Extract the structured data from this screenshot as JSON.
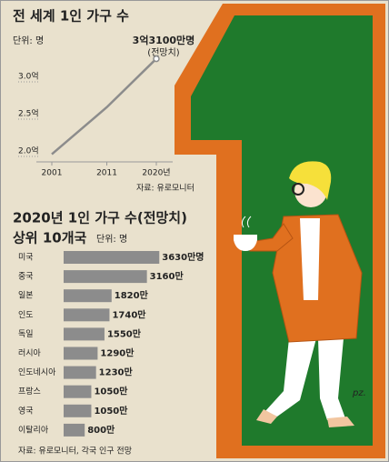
{
  "chart_data": [
    {
      "type": "line",
      "title": "전 세계 1인 가구 수",
      "unit": "단위: 명",
      "x": [
        2001,
        2011,
        2020
      ],
      "values": [
        2.03,
        2.66,
        3.31
      ],
      "value_labels": [
        null,
        null,
        "3억3100만명"
      ],
      "annotation": "(전망치)",
      "color": "#8c8c8c",
      "xlim": [
        2001,
        2020
      ],
      "xticks": [
        2001,
        2011,
        {
          "value": 2020,
          "label": "2020년"
        }
      ],
      "ylim": [
        1.9,
        3.35
      ],
      "yticks": [
        {
          "value": 2,
          "label": "2.0억"
        },
        {
          "value": 2.5,
          "label": "2.5억"
        },
        {
          "value": 3,
          "label": "3.0억"
        }
      ],
      "grid": false,
      "source": "자료: 유로모니터"
    },
    {
      "type": "hbar",
      "title": "2020년 1인 가구 수(전망치)",
      "subtitle": "상위 10개국",
      "unit": "단위: 명",
      "categories": [
        "미국",
        "중국",
        "일본",
        "인도",
        "독일",
        "러시아",
        "인도네시아",
        "프랑스",
        "영국",
        "이탈리아"
      ],
      "values": [
        3630,
        3160,
        1820,
        1740,
        1550,
        1290,
        1230,
        1050,
        1050,
        800
      ],
      "value_labels": [
        "3630만명",
        "3160만",
        "1820만",
        "1740만",
        "1550만",
        "1290만",
        "1230만",
        "1050만",
        "1050만",
        "800만"
      ],
      "color": "#8c8c8c",
      "source": "자료: 유로모니터, 각국 인구 전망"
    }
  ],
  "signature": "pz."
}
